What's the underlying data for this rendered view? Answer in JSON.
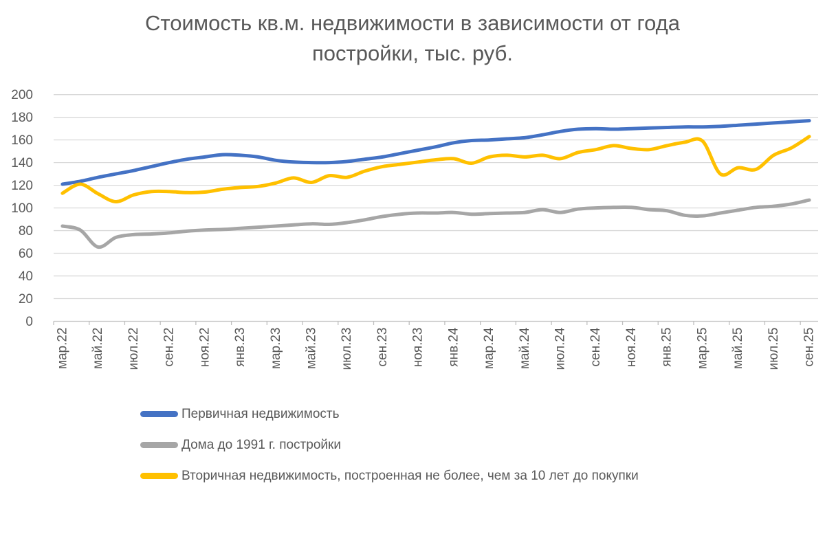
{
  "title": {
    "line1": "Стоимость кв.м. недвижимости в зависимости от года",
    "line2": "постройки, тыс. руб.",
    "color": "#595959"
  },
  "chart_data": {
    "type": "line",
    "smoothed": true,
    "title": "Стоимость кв.м. недвижимости в зависимости от года постройки, тыс. руб.",
    "ylabel": "тыс. руб.",
    "ylim": [
      0,
      200
    ],
    "y_tick_step": 20,
    "y_tick_labels": [
      "0",
      "20",
      "40",
      "60",
      "80",
      "100",
      "120",
      "140",
      "160",
      "180",
      "200"
    ],
    "grid": true,
    "legend_position": "bottom-left",
    "x_tick_label_rotation": -90,
    "categories": [
      "мар.22",
      "апр.22",
      "май.22",
      "июн.22",
      "июл.22",
      "авг.22",
      "сен.22",
      "окт.22",
      "ноя.22",
      "дек.22",
      "янв.23",
      "фев.23",
      "мар.23",
      "апр.23",
      "май.23",
      "июн.23",
      "июл.23",
      "авг.23",
      "сен.23",
      "окт.23",
      "ноя.23",
      "дек.23",
      "янв.24",
      "фев.24",
      "мар.24",
      "апр.24",
      "май.24",
      "июн.24",
      "июл.24",
      "авг.24",
      "сен.24",
      "окт.24",
      "ноя.24",
      "дек.24",
      "янв.25",
      "фев.25",
      "мар.25",
      "апр.25",
      "май.25",
      "июн.25",
      "июл.25",
      "авг.25",
      "сен.25"
    ],
    "x_labels_shown": [
      "мар.22",
      "май.22",
      "июл.22",
      "сен.22",
      "ноя.22",
      "янв.23",
      "мар.23",
      "май.23",
      "июл.23",
      "сен.23",
      "ноя.23",
      "янв.24",
      "мар.24",
      "май.24",
      "июл.24",
      "сен.24",
      "ноя.24",
      "янв.25",
      "мар.25",
      "май.25",
      "июл.25",
      "сен.25"
    ],
    "series": [
      {
        "id": "primary",
        "name": "Первичная недвижимость",
        "color": "#4472C4",
        "values": [
          121,
          123.5,
          127,
          130,
          133,
          136.5,
          140,
          143,
          145,
          147,
          146.5,
          145,
          142,
          140.5,
          140,
          140,
          141,
          143,
          145,
          148,
          151,
          154,
          157.5,
          159.5,
          160,
          161,
          162,
          164.5,
          167.5,
          169.5,
          170,
          169.5,
          170,
          170.5,
          171,
          171.5,
          171.5,
          172,
          173,
          174,
          175,
          176,
          177
        ]
      },
      {
        "id": "pre-1991",
        "name": "Дома до 1991 г. постройки",
        "color": "#A6A6A6",
        "values": [
          84,
          80.5,
          65.5,
          74,
          76.5,
          77,
          78,
          79.5,
          80.5,
          81,
          82,
          83,
          84,
          85,
          86,
          85.5,
          87,
          89.5,
          92.5,
          94.5,
          95.5,
          95.5,
          96,
          94.5,
          95,
          95.5,
          96,
          98.5,
          96,
          99,
          100,
          100.5,
          100.5,
          98.5,
          97.5,
          93.5,
          93,
          95.5,
          98,
          100.5,
          101.5,
          103.5,
          107
        ]
      },
      {
        "id": "secondary-under-10-years",
        "name": "Вторичная недвижимость, построенная не более, чем за 10 лет до покупки",
        "color": "#FFC000",
        "values": [
          113,
          121,
          112.5,
          105.5,
          111.5,
          114.5,
          114.5,
          113.5,
          114,
          116.5,
          118,
          119,
          122,
          126.5,
          122.5,
          128.5,
          127,
          132.5,
          136.5,
          138.5,
          140.5,
          142.5,
          143.5,
          139.5,
          145,
          146.5,
          145,
          146.5,
          143.5,
          149,
          151.5,
          155,
          152.5,
          151.5,
          155,
          158,
          159,
          130,
          135.5,
          134,
          146.5,
          153,
          163
        ]
      }
    ],
    "colors": {
      "gridline": "#D9D9D9",
      "axis_line": "#BFBFBF",
      "tick_text": "#595959"
    }
  }
}
